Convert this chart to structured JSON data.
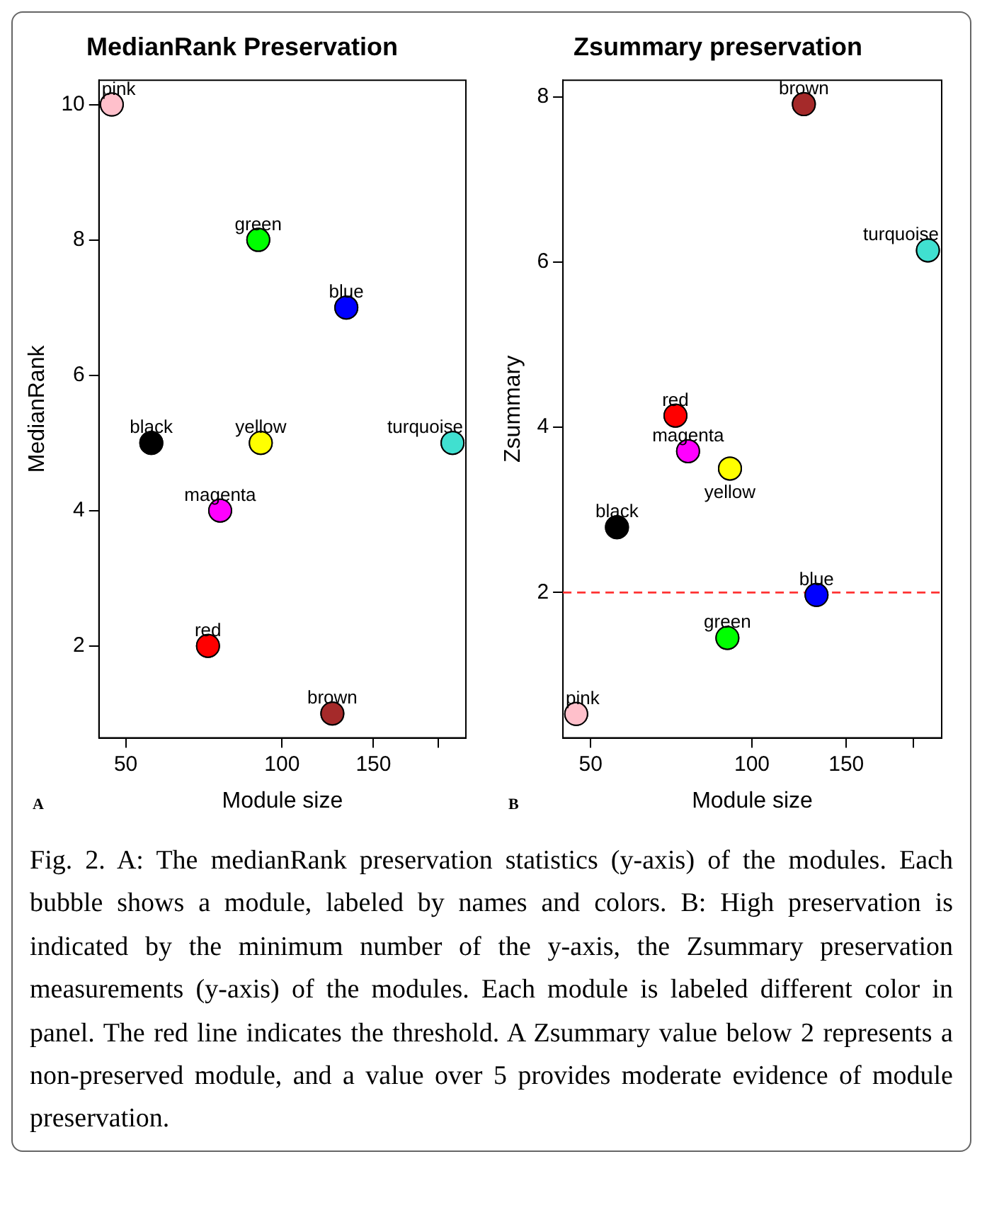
{
  "chart_data": [
    {
      "type": "scatter",
      "title": "MedianRank Preservation",
      "xlabel": "Module size",
      "ylabel": "MedianRank",
      "log": "x",
      "xlim": [
        44.4,
        226
      ],
      "xticks": [
        50,
        100,
        150,
        {
          "value": 200,
          "label": null
        }
      ],
      "ylim": [
        0.64,
        10.36
      ],
      "yticks": [
        2,
        4,
        6,
        8,
        10
      ],
      "grid": false,
      "legend": false,
      "marker": "circle",
      "annotations": [
        "A"
      ],
      "series": [
        {
          "name": "pink",
          "color": "#ffc0cb",
          "x": [
            47
          ],
          "values": [
            10
          ]
        },
        {
          "name": "black",
          "color": "#000000",
          "x": [
            56
          ],
          "values": [
            5
          ]
        },
        {
          "name": "red",
          "color": "#ff0000",
          "x": [
            72
          ],
          "values": [
            2
          ]
        },
        {
          "name": "magenta",
          "color": "#ff00ff",
          "x": [
            76
          ],
          "values": [
            4
          ]
        },
        {
          "name": "green",
          "color": "#00ff00",
          "x": [
            90
          ],
          "values": [
            8
          ]
        },
        {
          "name": "yellow",
          "color": "#ffff00",
          "x": [
            91
          ],
          "values": [
            5
          ]
        },
        {
          "name": "brown",
          "color": "#a52a2a",
          "x": [
            125
          ],
          "values": [
            1
          ]
        },
        {
          "name": "blue",
          "color": "#0000ff",
          "x": [
            133
          ],
          "values": [
            7
          ]
        },
        {
          "name": "turquoise",
          "color": "#40e0d0",
          "x": [
            213
          ],
          "values": [
            5
          ]
        }
      ]
    },
    {
      "type": "scatter",
      "title": "Zsummary preservation",
      "xlabel": "Module size",
      "ylabel": "Zsummary",
      "log": "x",
      "xlim": [
        44.4,
        226
      ],
      "xticks": [
        50,
        100,
        150,
        {
          "value": 200,
          "label": null
        }
      ],
      "ylim": [
        0.24,
        8.2
      ],
      "yticks": [
        2,
        4,
        6,
        8
      ],
      "grid": false,
      "legend": false,
      "marker": "circle",
      "annotations": [
        "B",
        "Fig. 2. A: The medianRank preservation statistics (y-axis) of the modules. Each bubble shows a module, labeled by names and colors. B: High preservation is indicated by the minimum number of the y-axis, the Zsummary preservation measurements (y-axis) of the modules. Each module is labeled different color in panel. The red line indicates the threshold. A Zsummary value below 2 represents a non-preserved module, and a value over 5 provides moderate evidence of module preservation."
      ],
      "ref_lines": [
        {
          "axis": "y",
          "value": 2,
          "color": "#ff3333",
          "line_style": "dashed"
        }
      ],
      "series": [
        {
          "name": "pink",
          "color": "#ffc0cb",
          "x": [
            47
          ],
          "values": [
            0.53
          ]
        },
        {
          "name": "black",
          "color": "#000000",
          "x": [
            56
          ],
          "values": [
            2.79
          ]
        },
        {
          "name": "red",
          "color": "#ff0000",
          "x": [
            72
          ],
          "values": [
            4.14
          ]
        },
        {
          "name": "magenta",
          "color": "#ff00ff",
          "x": [
            76
          ],
          "values": [
            3.71
          ]
        },
        {
          "name": "green",
          "color": "#00ff00",
          "x": [
            90
          ],
          "values": [
            1.45
          ]
        },
        {
          "name": "yellow",
          "color": "#ffff00",
          "x": [
            91
          ],
          "values": [
            3.5
          ]
        },
        {
          "name": "brown",
          "color": "#a52a2a",
          "x": [
            125
          ],
          "values": [
            7.91
          ]
        },
        {
          "name": "blue",
          "color": "#0000ff",
          "x": [
            132
          ],
          "values": [
            1.97
          ]
        },
        {
          "name": "turquoise",
          "color": "#40e0d0",
          "x": [
            213
          ],
          "values": [
            6.14
          ]
        }
      ]
    }
  ]
}
